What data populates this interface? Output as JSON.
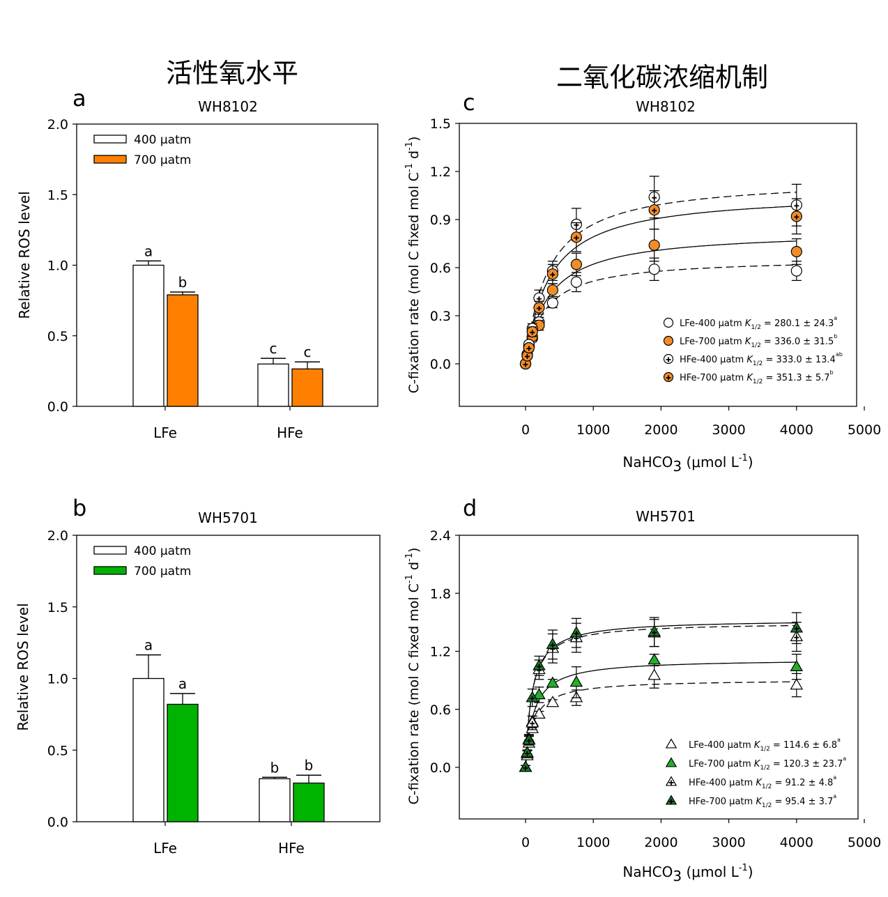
{
  "section_titles": {
    "left": "活性氧水平",
    "right": "二氧化碳浓缩机制"
  },
  "chart_data": [
    {
      "panel": "a",
      "type": "bar",
      "title": "WH8102",
      "xlabel": "",
      "ylabel": "Relative ROS level",
      "ylim": [
        0,
        2.0
      ],
      "yticks": [
        "0.0",
        "0.5",
        "1.0",
        "1.5",
        "2.0"
      ],
      "categories": [
        "LFe",
        "HFe"
      ],
      "legend_position": "top-left",
      "series": [
        {
          "name": "400 μatm",
          "color": "#ffffff",
          "values": [
            1.0,
            0.3
          ],
          "errors": [
            0.03,
            0.04
          ],
          "letters": [
            "a",
            "c"
          ]
        },
        {
          "name": "700 μatm",
          "color": "#ff8000",
          "values": [
            0.79,
            0.265
          ],
          "errors": [
            0.02,
            0.05
          ],
          "letters": [
            "b",
            "c"
          ]
        }
      ]
    },
    {
      "panel": "b",
      "type": "bar",
      "title": "WH5701",
      "xlabel": "",
      "ylabel": "Relative ROS level",
      "ylim": [
        0,
        2.0
      ],
      "yticks": [
        "0.0",
        "0.5",
        "1.0",
        "1.5",
        "2.0"
      ],
      "categories": [
        "LFe",
        "HFe"
      ],
      "legend_position": "top-left",
      "series": [
        {
          "name": "400 μatm",
          "color": "#ffffff",
          "values": [
            1.0,
            0.3
          ],
          "errors": [
            0.165,
            0.01
          ],
          "letters": [
            "a",
            "b"
          ]
        },
        {
          "name": "700 μatm",
          "color": "#00b300",
          "values": [
            0.82,
            0.27
          ],
          "errors": [
            0.075,
            0.055
          ],
          "letters": [
            "a",
            "b"
          ]
        }
      ]
    },
    {
      "panel": "c",
      "type": "scatter",
      "title": "WH8102",
      "xlabel": "NaHCO3 (μmol L-1)",
      "xlabel_parts": {
        "main": "NaHCO",
        "sub": "3",
        "tail": " (μmol L",
        "sup": "-1",
        "end": ")"
      },
      "ylabel": "C-fixation rate (mol C fixed mol C-1 d-1)",
      "ylabel_parts": {
        "a": "C-fixation rate (mol C fixed mol C",
        "sup1": "-1",
        "b": " d",
        "sup2": "-1",
        "c": ")"
      },
      "xlim": [
        -1000,
        5000
      ],
      "ylim": [
        -0.27,
        1.5
      ],
      "xticks": [
        0,
        1000,
        2000,
        3000,
        4000,
        5000
      ],
      "yticks": [
        "0.0",
        "0.3",
        "0.6",
        "0.9",
        "1.2",
        "1.5"
      ],
      "yticks_values": [
        0,
        0.3,
        0.6,
        0.9,
        1.2,
        1.5
      ],
      "legend_position": "bottom-right",
      "marker": "circle",
      "series": [
        {
          "name": "LFe-400 μatm",
          "k_label": "K",
          "k_sub": "1/2",
          "k_value": "= 280.1 ± 24.3",
          "k_sig": "a",
          "fill": "#ffffff",
          "plus": false,
          "line": "dashed",
          "vmax": 0.66,
          "km": 280.1,
          "x": [
            0,
            25,
            50,
            100,
            200,
            400,
            750,
            1900,
            4000
          ],
          "y": [
            0.0,
            0.05,
            0.1,
            0.16,
            0.26,
            0.38,
            0.51,
            0.59,
            0.58
          ],
          "err": [
            0.01,
            0.01,
            0.02,
            0.02,
            0.03,
            0.03,
            0.06,
            0.07,
            0.06
          ]
        },
        {
          "name": "LFe-700 μatm",
          "k_label": "K",
          "k_sub": "1/2",
          "k_value": "= 336.0 ± 31.5",
          "k_sig": "b",
          "fill": "#f28c28",
          "plus": false,
          "line": "solid",
          "vmax": 0.83,
          "km": 336.0,
          "x": [
            0,
            25,
            50,
            100,
            200,
            400,
            750,
            1900,
            4000
          ],
          "y": [
            0.0,
            0.06,
            0.11,
            0.17,
            0.24,
            0.46,
            0.62,
            0.74,
            0.7
          ],
          "err": [
            0.01,
            0.01,
            0.02,
            0.02,
            0.03,
            0.04,
            0.07,
            0.1,
            0.08
          ]
        },
        {
          "name": "HFe-400 μatm",
          "k_label": "K",
          "k_sub": "1/2",
          "k_value": "= 333.0 ± 13.4",
          "k_sig": "ab",
          "fill": "#ffffff",
          "plus": true,
          "line": "dashed",
          "vmax": 1.16,
          "km": 333.0,
          "x": [
            0,
            25,
            50,
            100,
            200,
            400,
            750,
            1900,
            4000
          ],
          "y": [
            0.0,
            0.06,
            0.12,
            0.22,
            0.41,
            0.58,
            0.87,
            1.04,
            0.99
          ],
          "err": [
            0.01,
            0.01,
            0.02,
            0.03,
            0.05,
            0.06,
            0.1,
            0.13,
            0.13
          ]
        },
        {
          "name": "HFe-700 μatm",
          "k_label": "K",
          "k_sub": "1/2",
          "k_value": "= 351.3 ± 5.7",
          "k_sig": "b",
          "fill": "#f28c28",
          "plus": true,
          "line": "solid",
          "vmax": 1.07,
          "km": 351.3,
          "x": [
            0,
            25,
            50,
            100,
            200,
            400,
            750,
            1900,
            4000
          ],
          "y": [
            0.0,
            0.05,
            0.1,
            0.2,
            0.35,
            0.56,
            0.79,
            0.96,
            0.92
          ],
          "err": [
            0.01,
            0.01,
            0.02,
            0.03,
            0.04,
            0.06,
            0.09,
            0.12,
            0.11
          ]
        }
      ]
    },
    {
      "panel": "d",
      "type": "scatter",
      "title": "WH5701",
      "xlabel": "NaHCO3 (μmol L-1)",
      "xlabel_parts": {
        "main": "NaHCO",
        "sub": "3",
        "tail": " (μmol L",
        "sup": "-1",
        "end": ")"
      },
      "ylabel": "C-fixation rate (mol C fixed mol C-1 d-1)",
      "ylabel_parts": {
        "a": "C-fixation rate (mol C fixed mol C",
        "sup1": "-1",
        "b": " d",
        "sup2": "-1",
        "c": ")"
      },
      "xlim": [
        -1000,
        5000
      ],
      "ylim": [
        -0.54,
        2.4
      ],
      "xticks": [
        0,
        1000,
        2000,
        3000,
        4000,
        5000
      ],
      "yticks": [
        "0.0",
        "0.6",
        "1.2",
        "1.8",
        "2.4"
      ],
      "yticks_values": [
        0,
        0.6,
        1.2,
        1.8,
        2.4
      ],
      "legend_position": "bottom-right",
      "marker": "triangle",
      "series": [
        {
          "name": "LFe-400 μatm",
          "k_label": "K",
          "k_sub": "1/2",
          "k_value": "= 114.6 ± 6.8",
          "k_sig": "a",
          "fill": "#ffffff",
          "plus": false,
          "line": "dashed",
          "vmax": 0.91,
          "km": 114.6,
          "x": [
            0,
            25,
            50,
            100,
            200,
            400,
            750,
            1900,
            4000
          ],
          "y": [
            0.0,
            0.12,
            0.25,
            0.4,
            0.55,
            0.67,
            0.72,
            0.95,
            0.85
          ],
          "err": [
            0.02,
            0.02,
            0.03,
            0.03,
            0.03,
            0.03,
            0.08,
            0.13,
            0.12
          ]
        },
        {
          "name": "LFe-700 μatm",
          "k_label": "K",
          "k_sub": "1/2",
          "k_value": "= 120.3 ± 23.7",
          "k_sig": "a",
          "fill": "#21b02a",
          "plus": false,
          "line": "solid",
          "vmax": 1.12,
          "km": 120.3,
          "x": [
            0,
            25,
            50,
            100,
            200,
            400,
            750,
            1900,
            4000
          ],
          "y": [
            0.0,
            0.15,
            0.28,
            0.47,
            0.75,
            0.87,
            0.88,
            1.11,
            1.04
          ],
          "err": [
            0.02,
            0.03,
            0.04,
            0.06,
            0.08,
            0.04,
            0.16,
            0.06,
            0.13
          ]
        },
        {
          "name": "HFe-400 μatm",
          "k_label": "K",
          "k_sub": "1/2",
          "k_value": "= 91.2 ± 4.8",
          "k_sig": "a",
          "fill": "#ffffff",
          "plus": true,
          "line": "dashed",
          "vmax": 1.5,
          "km": 91.2,
          "x": [
            0,
            25,
            50,
            100,
            200,
            400,
            750,
            1900,
            4000
          ],
          "y": [
            0.0,
            0.14,
            0.29,
            0.46,
            1.01,
            1.23,
            1.34,
            1.39,
            1.35
          ],
          "err": [
            0.02,
            0.03,
            0.05,
            0.07,
            0.1,
            0.15,
            0.15,
            0.14,
            0.15
          ]
        },
        {
          "name": "HFe-700 μatm",
          "k_label": "K",
          "k_sub": "1/2",
          "k_value": "= 95.4 ± 3.7",
          "k_sig": "a",
          "fill": "#1e7a2a",
          "plus": true,
          "line": "solid",
          "vmax": 1.53,
          "km": 95.4,
          "x": [
            0,
            25,
            50,
            100,
            200,
            400,
            750,
            1900,
            4000
          ],
          "y": [
            0.0,
            0.15,
            0.28,
            0.72,
            1.05,
            1.27,
            1.39,
            1.4,
            1.44
          ],
          "err": [
            0.02,
            0.03,
            0.05,
            0.09,
            0.1,
            0.15,
            0.15,
            0.15,
            0.16
          ]
        }
      ]
    }
  ]
}
